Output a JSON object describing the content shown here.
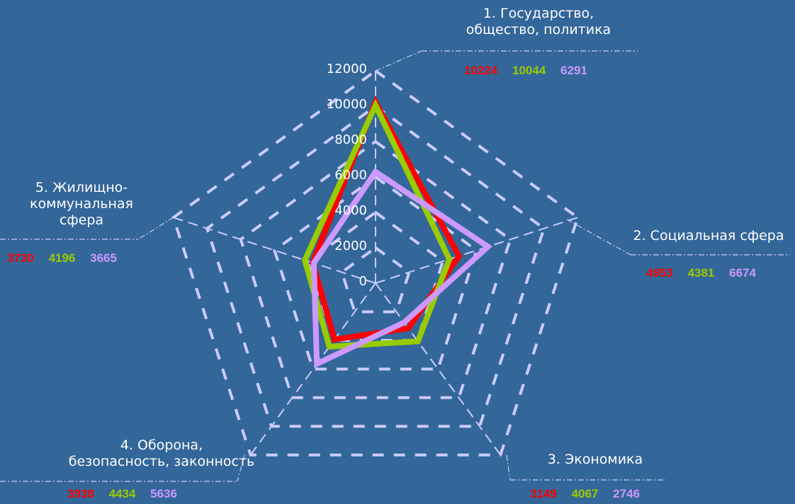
{
  "chart_data": {
    "type": "radar",
    "title": "",
    "categories": [
      "1. Государство,\nобщество, политика",
      "2. Социальная сфера",
      "3. Экономика",
      "4. Оборона,\nбезопасность, законность",
      "5. Жилищно-\nкоммунальная\nсфера"
    ],
    "series": [
      {
        "color": "#ff0000",
        "values": [
          10224,
          4953,
          3149,
          3938,
          3730
        ]
      },
      {
        "color": "#99cc00",
        "values": [
          10044,
          4381,
          4067,
          4434,
          4196
        ]
      },
      {
        "color": "#cc99ff",
        "values": [
          6291,
          6674,
          2746,
          5636,
          3665
        ]
      }
    ],
    "r_ticks": [
      "0",
      "2000",
      "4000",
      "6000",
      "8000",
      "10000",
      "12000"
    ],
    "r_range": [
      0,
      12000
    ],
    "grid": "dashed",
    "legend": "none"
  },
  "category_value_labels": [
    [
      "10224",
      "10044",
      "6291"
    ],
    [
      "4953",
      "4381",
      "6674"
    ],
    [
      "3149",
      "4067",
      "2746"
    ],
    [
      "3938",
      "4434",
      "5636"
    ],
    [
      "3730",
      "4196",
      "3665"
    ]
  ],
  "colors": {
    "background": "#336699",
    "grid": "#ccccff",
    "label_text": "#ffffff"
  }
}
